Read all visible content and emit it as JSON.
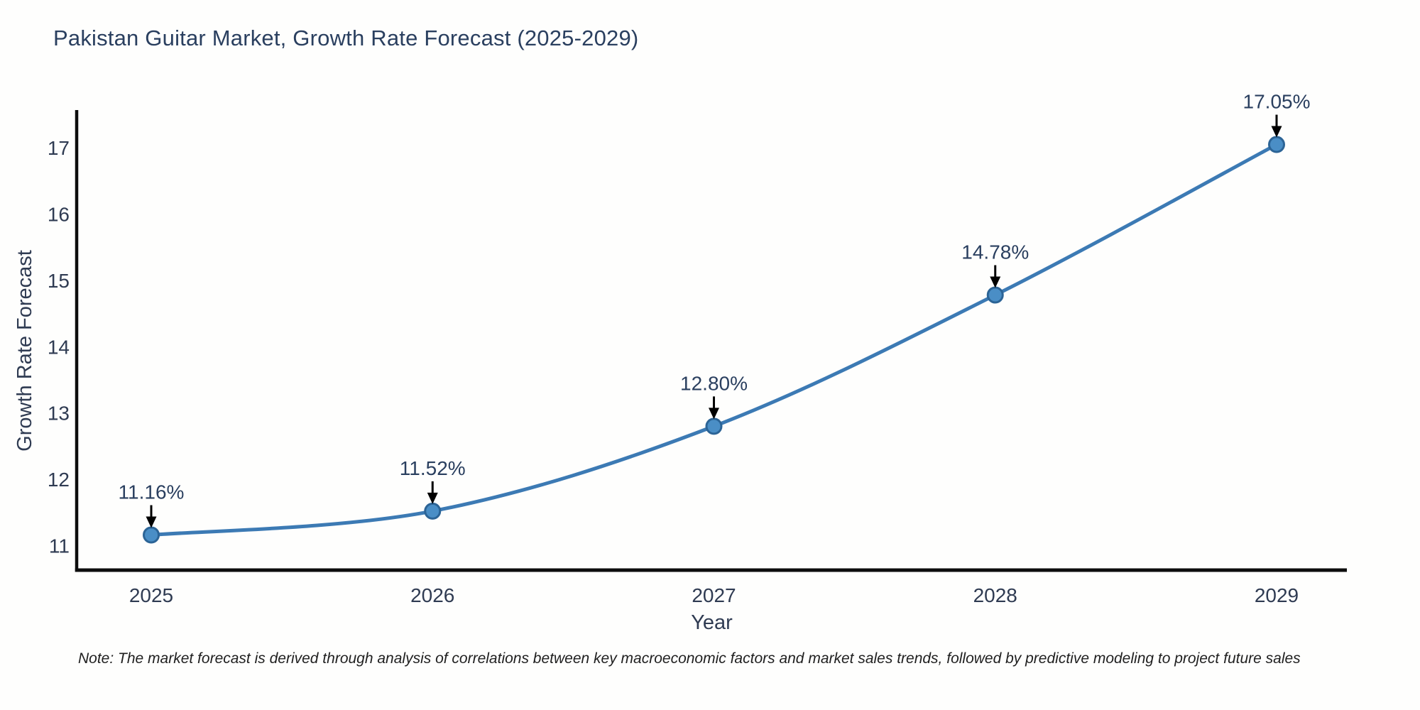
{
  "chart": {
    "title": "Pakistan Guitar Market, Growth Rate Forecast (2025-2029)",
    "note": "Note: The market forecast is derived through analysis of correlations between key macroeconomic factors and market sales trends, followed by predictive modeling to project future sales"
  },
  "chart_data": {
    "type": "line",
    "title": "Pakistan Guitar Market, Growth Rate Forecast (2025-2029)",
    "xlabel": "Year",
    "ylabel": "Growth Rate Forecast",
    "x": [
      2025,
      2026,
      2027,
      2028,
      2029
    ],
    "values": [
      11.16,
      11.52,
      12.8,
      14.78,
      17.05
    ],
    "point_labels": [
      "11.16%",
      "11.52%",
      "12.80%",
      "14.78%",
      "17.05%"
    ],
    "y_ticks": [
      11,
      12,
      13,
      14,
      15,
      16,
      17
    ],
    "ylim": [
      10.63,
      17.57
    ],
    "grid": false,
    "legend": "none",
    "line_shape": "spline",
    "colors": {
      "line": "#3c7ab4",
      "marker_fill": "#4a8ec6",
      "marker_edge": "#2c6496",
      "axis": "#0d0d0d",
      "annotation": "#000000",
      "text": "#2f3b52",
      "title": "#2a3f5f"
    }
  }
}
